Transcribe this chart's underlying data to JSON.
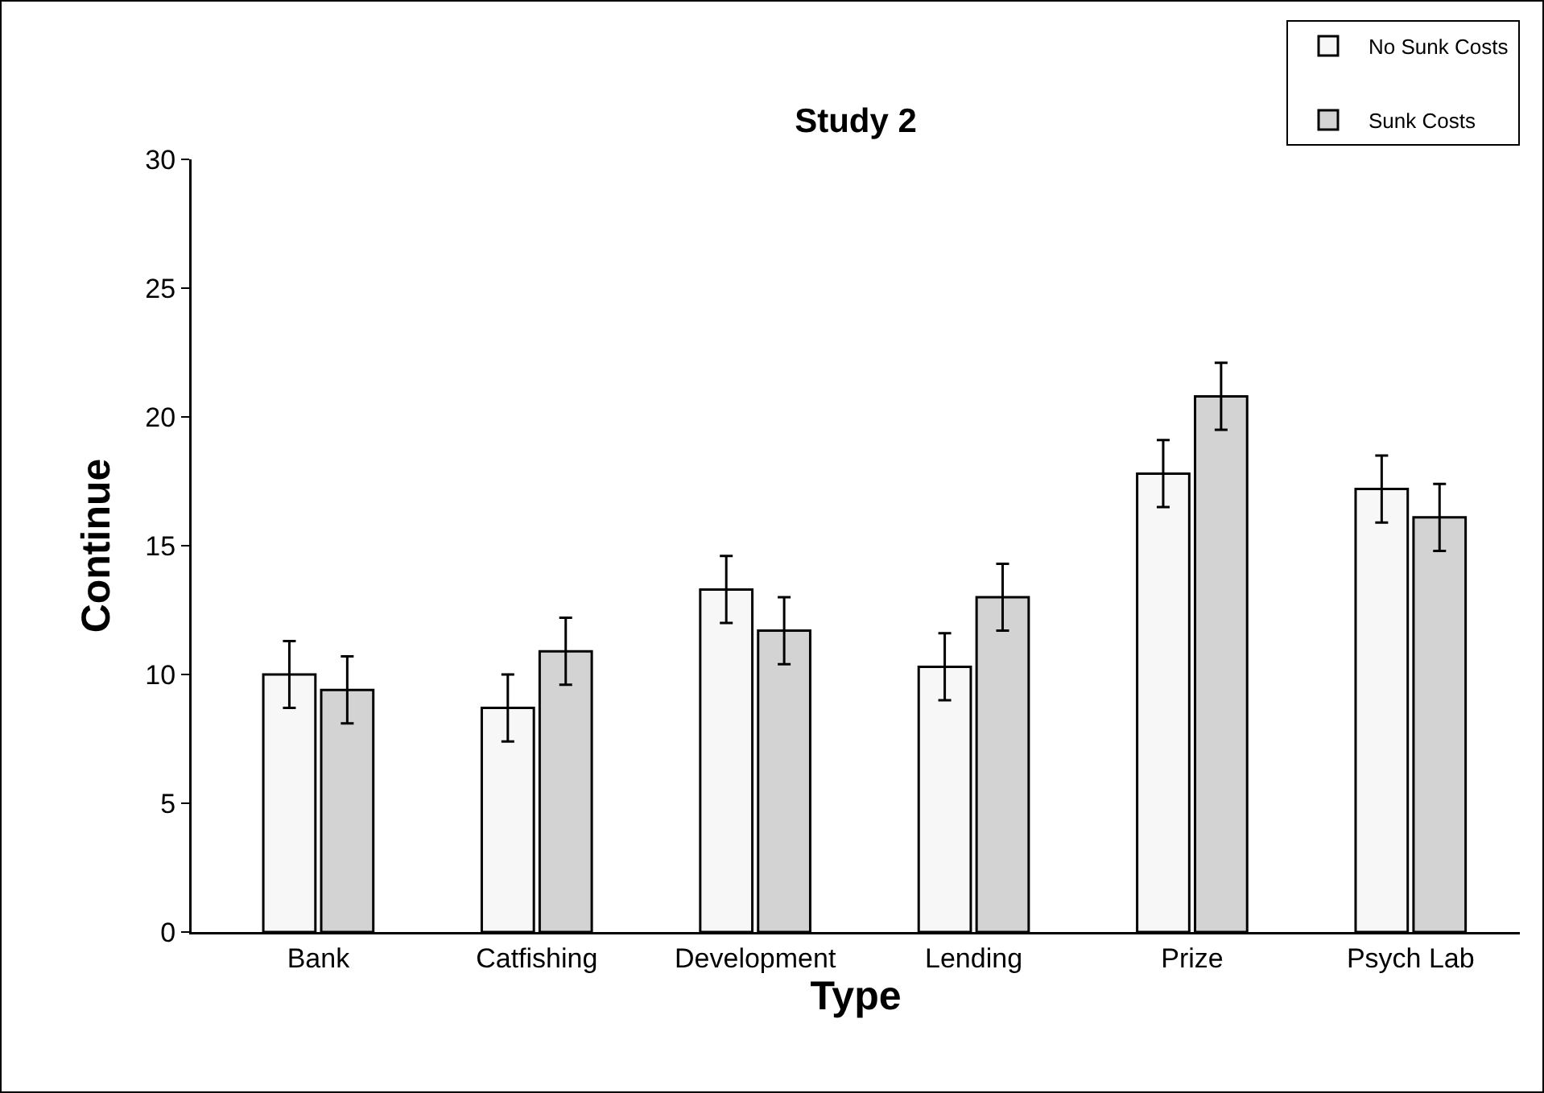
{
  "chart_data": {
    "type": "bar",
    "title": "Study 2",
    "xlabel": "Type",
    "ylabel": "Continue",
    "categories": [
      "Bank",
      "Catfishing",
      "Development",
      "Lending",
      "Prize",
      "Psych Lab"
    ],
    "series": [
      {
        "name": "No Sunk Costs",
        "color": "#f7f7f7",
        "values": [
          10.0,
          8.7,
          13.3,
          10.3,
          17.8,
          17.2
        ],
        "errors": [
          1.3,
          1.3,
          1.3,
          1.3,
          1.3,
          1.3
        ]
      },
      {
        "name": "Sunk Costs",
        "color": "#d3d3d3",
        "values": [
          9.4,
          10.9,
          11.7,
          13.0,
          20.8,
          16.1
        ],
        "errors": [
          1.3,
          1.3,
          1.3,
          1.3,
          1.3,
          1.3
        ]
      }
    ],
    "ylim": [
      0,
      30
    ],
    "yticks": [
      0,
      5,
      10,
      15,
      20,
      25,
      30
    ],
    "grid": false,
    "legend": "top right"
  }
}
